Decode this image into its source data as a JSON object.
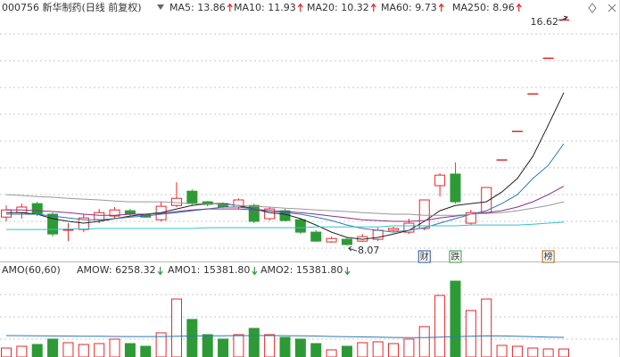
{
  "chart_data": {
    "type": "candlestick",
    "title": "000756 新华制药(日线 前复权)",
    "open": [
      9.15,
      9.32,
      9.66,
      9.26,
      8.65,
      8.68,
      9.05,
      9.19,
      9.39,
      9.26,
      9.05,
      9.59,
      10.13,
      9.73,
      9.66,
      9.53,
      9.59,
      9.09,
      9.39,
      9.05,
      8.58,
      8.21,
      8.31,
      8.24,
      8.31,
      8.65,
      8.58,
      8.72,
      10.34,
      10.78,
      8.92,
      9.32,
      11.32,
      12.4,
      13.82,
      15.17,
      16.62
    ],
    "high": [
      9.59,
      9.66,
      9.73,
      9.32,
      8.92,
      9.26,
      9.46,
      9.53,
      9.46,
      9.29,
      9.73,
      10.47,
      10.2,
      9.76,
      9.7,
      9.86,
      9.66,
      9.53,
      9.46,
      9.12,
      8.65,
      8.41,
      8.38,
      8.51,
      8.75,
      8.78,
      9.09,
      9.8,
      10.81,
      11.22,
      9.42,
      10.27,
      11.32,
      12.4,
      13.82,
      15.17,
      16.62
    ],
    "low": [
      8.99,
      9.09,
      9.19,
      8.41,
      8.24,
      8.58,
      8.92,
      9.09,
      9.19,
      9.12,
      8.99,
      9.53,
      9.59,
      9.56,
      9.49,
      9.46,
      8.92,
      9.02,
      8.99,
      8.51,
      8.21,
      8.18,
      8.07,
      8.21,
      8.24,
      8.58,
      8.51,
      8.65,
      9.93,
      9.66,
      8.85,
      9.26,
      11.32,
      12.4,
      13.82,
      15.17,
      16.62
    ],
    "close": [
      9.42,
      9.53,
      9.26,
      8.51,
      8.68,
      9.12,
      9.32,
      9.42,
      9.26,
      9.15,
      9.56,
      9.86,
      9.66,
      9.63,
      9.53,
      9.8,
      8.99,
      9.46,
      9.02,
      8.58,
      8.24,
      8.34,
      8.11,
      8.41,
      8.65,
      8.72,
      8.92,
      9.8,
      10.74,
      9.73,
      9.32,
      10.27,
      11.32,
      12.4,
      13.82,
      15.17,
      16.62
    ],
    "up_color": "#e8262a",
    "down_color": "#2e9a35",
    "ylim": [
      7.57,
      16.76
    ],
    "max_label": "16.62",
    "min_label": "8.07",
    "ma": [
      {
        "label": "MA5: 13.86",
        "color": "#222222",
        "values": [
          9.32,
          9.32,
          9.26,
          9.09,
          8.99,
          8.92,
          8.99,
          9.09,
          9.19,
          9.26,
          9.32,
          9.46,
          9.59,
          9.66,
          9.66,
          9.59,
          9.46,
          9.32,
          9.26,
          9.09,
          8.85,
          8.58,
          8.38,
          8.31,
          8.38,
          8.51,
          8.65,
          8.99,
          9.39,
          9.59,
          9.66,
          9.73,
          10.1,
          10.61,
          11.45,
          12.63,
          13.86
        ]
      },
      {
        "label": "MA10: 11.93",
        "color": "#2a7ab5",
        "values": [
          9.26,
          9.26,
          9.26,
          9.19,
          9.12,
          9.05,
          9.05,
          9.09,
          9.15,
          9.19,
          9.26,
          9.32,
          9.39,
          9.46,
          9.53,
          9.53,
          9.46,
          9.39,
          9.32,
          9.26,
          9.15,
          9.02,
          8.85,
          8.72,
          8.65,
          8.58,
          8.65,
          8.75,
          8.92,
          9.09,
          9.26,
          9.39,
          9.66,
          10.0,
          10.61,
          11.11,
          11.93
        ]
      },
      {
        "label": "MA20: 10.32",
        "color": "#8b2f8b",
        "values": [
          9.42,
          9.42,
          9.39,
          9.36,
          9.32,
          9.26,
          9.22,
          9.22,
          9.26,
          9.26,
          9.29,
          9.36,
          9.42,
          9.46,
          9.46,
          9.46,
          9.42,
          9.39,
          9.36,
          9.32,
          9.26,
          9.19,
          9.12,
          9.05,
          9.02,
          8.99,
          8.99,
          9.02,
          9.12,
          9.19,
          9.26,
          9.32,
          9.39,
          9.53,
          9.73,
          10.0,
          10.32
        ]
      },
      {
        "label": "MA60: 9.73",
        "color": "#999999",
        "values": [
          10.0,
          9.97,
          9.93,
          9.9,
          9.86,
          9.83,
          9.8,
          9.76,
          9.73,
          9.73,
          9.73,
          9.7,
          9.66,
          9.66,
          9.63,
          9.59,
          9.56,
          9.53,
          9.49,
          9.46,
          9.42,
          9.39,
          9.36,
          9.32,
          9.29,
          9.26,
          9.26,
          9.22,
          9.22,
          9.22,
          9.26,
          9.29,
          9.32,
          9.39,
          9.49,
          9.59,
          9.73
        ]
      },
      {
        "label": "MA250: 8.96",
        "color": "#33c3cc",
        "values": [
          8.68,
          8.68,
          8.68,
          8.68,
          8.7,
          8.7,
          8.72,
          8.72,
          8.72,
          8.72,
          8.72,
          8.72,
          8.72,
          8.75,
          8.75,
          8.75,
          8.75,
          8.75,
          8.75,
          8.75,
          8.78,
          8.78,
          8.78,
          8.78,
          8.78,
          8.82,
          8.82,
          8.82,
          8.82,
          8.82,
          8.85,
          8.85,
          8.85,
          8.85,
          8.88,
          8.92,
          8.96
        ]
      }
    ],
    "events": [
      null,
      null,
      null,
      null,
      null,
      null,
      null,
      null,
      null,
      null,
      null,
      null,
      null,
      null,
      null,
      null,
      null,
      null,
      null,
      null,
      null,
      null,
      null,
      null,
      null,
      null,
      null,
      {
        "label": "财",
        "color": "#1f4fa0"
      },
      null,
      {
        "label": "跌",
        "color": "#2e9a35"
      },
      null,
      null,
      null,
      null,
      null,
      {
        "label": "榜",
        "color": "#a0601a"
      },
      null
    ],
    "amount_panel": {
      "labels": [
        {
          "text": "AMO(60,60)",
          "color": "#333333"
        },
        {
          "text": "AMOW: 6258.32",
          "color": "#333333"
        },
        {
          "text": "AMO1: 15381.80",
          "color": "#333333"
        },
        {
          "text": "AMO2: 15381.80",
          "color": "#2a7ab5"
        }
      ],
      "values": [
        7000,
        8400,
        9800,
        14000,
        11200,
        9800,
        10500,
        14000,
        10500,
        8400,
        18900,
        45400,
        29400,
        17500,
        14000,
        17500,
        22400,
        17500,
        15400,
        14000,
        10500,
        5600,
        8400,
        11200,
        11900,
        10500,
        14000,
        23800,
        48200,
        59400,
        36400,
        45400,
        9100,
        8400,
        7000,
        6300,
        6258.32
      ],
      "line": {
        "color": "#2a7ab5",
        "values": [
          16800,
          16700,
          16600,
          16500,
          16400,
          16300,
          16200,
          16100,
          16000,
          16000,
          16000,
          16200,
          16500,
          16600,
          16600,
          16700,
          16800,
          16800,
          16700,
          16600,
          16400,
          16100,
          15900,
          15700,
          15500,
          15300,
          15200,
          15200,
          15500,
          16000,
          16300,
          16600,
          16500,
          16200,
          15900,
          15600,
          15381.8
        ]
      },
      "ylim": [
        0,
        62900
      ]
    }
  }
}
